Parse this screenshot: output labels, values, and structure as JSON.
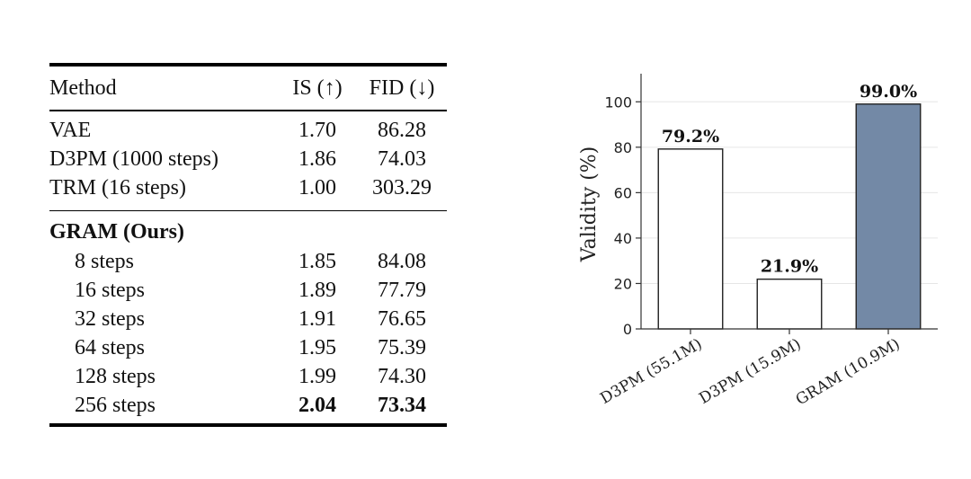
{
  "table": {
    "headers": {
      "method": "Method",
      "is": "IS (↑)",
      "fid": "FID (↓)"
    },
    "baselines": [
      {
        "method": "VAE",
        "is": "1.70",
        "fid": "86.28"
      },
      {
        "method": "D3PM (1000 steps)",
        "is": "1.86",
        "fid": "74.03"
      },
      {
        "method": "TRM (16 steps)",
        "is": "1.00",
        "fid": "303.29"
      }
    ],
    "group_label": "GRAM (Ours)",
    "ours": [
      {
        "method": "8 steps",
        "is": "1.85",
        "fid": "84.08"
      },
      {
        "method": "16 steps",
        "is": "1.89",
        "fid": "77.79"
      },
      {
        "method": "32 steps",
        "is": "1.91",
        "fid": "76.65"
      },
      {
        "method": "64 steps",
        "is": "1.95",
        "fid": "75.39"
      },
      {
        "method": "128 steps",
        "is": "1.99",
        "fid": "74.30"
      },
      {
        "method": "256 steps",
        "is": "2.04",
        "fid": "73.34"
      }
    ]
  },
  "chart_data": {
    "type": "bar",
    "categories": [
      "D3PM (55.1M)",
      "D3PM (15.9M)",
      "GRAM (10.9M)"
    ],
    "values": [
      79.2,
      21.9,
      99.0
    ],
    "data_labels": [
      "79.2%",
      "21.9%",
      "99.0%"
    ],
    "bar_colors": [
      "#ffffff",
      "#ffffff",
      "#7389a6"
    ],
    "ylabel": "Validity (%)",
    "xlabel": "",
    "ylim": [
      0,
      110
    ],
    "yticks": [
      0,
      20,
      40,
      60,
      80,
      100
    ],
    "grid": true
  }
}
